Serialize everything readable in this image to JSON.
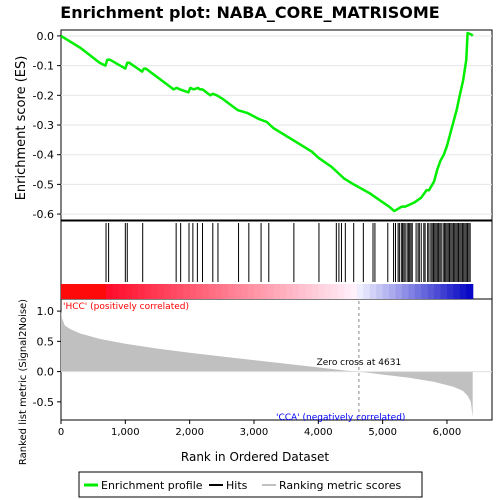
{
  "chart_data": {
    "type": "line",
    "title": "Enrichment plot: NABA_CORE_MATRISOME",
    "xlabel": "Rank in Ordered Dataset",
    "es_panel": {
      "ylabel": "Enrichment score (ES)",
      "ylim": [
        -0.62,
        0.02
      ],
      "yticks": [
        0.0,
        -0.1,
        -0.2,
        -0.3,
        -0.4,
        -0.5,
        -0.6
      ],
      "ytick_labels": [
        "0.0",
        "-0.1",
        "-0.2",
        "-0.3",
        "-0.4",
        "-0.5",
        "-0.6"
      ],
      "color": "#00ee00",
      "series": [
        {
          "name": "Enrichment profile",
          "x": [
            0,
            300,
            600,
            690,
            720,
            760,
            1000,
            1030,
            1060,
            1260,
            1290,
            1320,
            1750,
            1800,
            1850,
            1980,
            2010,
            2060,
            2130,
            2160,
            2200,
            2320,
            2360,
            2420,
            2500,
            2750,
            2900,
            3080,
            3200,
            3300,
            3600,
            3900,
            4000,
            4200,
            4300,
            4400,
            4550,
            4800,
            5000,
            5100,
            5180,
            5220,
            5300,
            5350,
            5400,
            5500,
            5600,
            5680,
            5720,
            5800,
            5850,
            5900,
            5950,
            6000,
            6050,
            6100,
            6150,
            6200,
            6250,
            6300,
            6320,
            6380,
            6400
          ],
          "y": [
            0.0,
            -0.04,
            -0.09,
            -0.1,
            -0.08,
            -0.08,
            -0.11,
            -0.09,
            -0.09,
            -0.12,
            -0.11,
            -0.11,
            -0.18,
            -0.175,
            -0.18,
            -0.19,
            -0.175,
            -0.18,
            -0.175,
            -0.18,
            -0.18,
            -0.2,
            -0.195,
            -0.2,
            -0.21,
            -0.25,
            -0.26,
            -0.28,
            -0.29,
            -0.31,
            -0.35,
            -0.39,
            -0.41,
            -0.44,
            -0.46,
            -0.48,
            -0.5,
            -0.53,
            -0.56,
            -0.575,
            -0.59,
            -0.585,
            -0.575,
            -0.575,
            -0.57,
            -0.56,
            -0.545,
            -0.52,
            -0.52,
            -0.49,
            -0.45,
            -0.42,
            -0.4,
            -0.37,
            -0.33,
            -0.29,
            -0.25,
            -0.2,
            -0.15,
            -0.08,
            0.01,
            0.005,
            0.0
          ]
        }
      ]
    },
    "hits_panel": {
      "hit_ranks": [
        700,
        740,
        1000,
        1030,
        1270,
        1790,
        1860,
        1990,
        2050,
        2120,
        2200,
        2360,
        2440,
        2760,
        2920,
        3110,
        3230,
        3620,
        4010,
        4280,
        4320,
        4360,
        4420,
        4550,
        4700,
        4850,
        4880,
        5080,
        5170,
        5200,
        5240,
        5260,
        5290,
        5310,
        5330,
        5350,
        5380,
        5400,
        5420,
        5440,
        5460,
        5520,
        5550,
        5570,
        5600,
        5640,
        5660,
        5700,
        5720,
        5750,
        5770,
        5790,
        5810,
        5830,
        5850,
        5870,
        5890,
        5910,
        5940,
        5960,
        5980,
        6000,
        6020,
        6040,
        6060,
        6080,
        6100,
        6120,
        6140,
        6160,
        6180,
        6200,
        6220,
        6240,
        6260,
        6280,
        6300,
        6320,
        6340,
        6360
      ]
    },
    "ranked_metric_panel": {
      "ylabel": "Ranked list metric (Signal2Noise)",
      "ylim": [
        -0.8,
        1.2
      ],
      "yticks": [
        1.0,
        0.5,
        0.0,
        -0.5
      ],
      "ytick_labels": [
        "1.0",
        "0.5",
        "0.0",
        "-0.5"
      ],
      "x": [
        0,
        20,
        60,
        150,
        300,
        600,
        1000,
        1500,
        2000,
        2500,
        3000,
        3500,
        4000,
        4400,
        4631,
        5000,
        5400,
        5800,
        6100,
        6250,
        6320,
        6370,
        6400
      ],
      "y": [
        1.0,
        0.87,
        0.76,
        0.7,
        0.63,
        0.54,
        0.46,
        0.38,
        0.31,
        0.25,
        0.19,
        0.13,
        0.07,
        0.02,
        0.0,
        -0.05,
        -0.1,
        -0.17,
        -0.25,
        -0.32,
        -0.4,
        -0.5,
        -0.75
      ],
      "zero_cross_label": "Zero cross at 4631",
      "zero_cross": 4631,
      "positive_label": "'HCC' (positively correlated)",
      "negative_label": "'CCA' (negatively correlated)"
    },
    "x_axis": {
      "xlim": [
        0,
        6700
      ],
      "ticks": [
        0,
        1000,
        2000,
        3000,
        4000,
        5000,
        6000
      ],
      "tick_labels": [
        "0",
        "1,000",
        "2,000",
        "3,000",
        "4,000",
        "5,000",
        "6,000"
      ],
      "n_genes": 6400
    },
    "legend": {
      "placement": "bottom",
      "items": [
        {
          "label": "Enrichment profile",
          "color": "#00ee00"
        },
        {
          "label": "Hits",
          "color": "#000000"
        },
        {
          "label": "Ranking metric scores",
          "color": "#c0c0c0"
        }
      ]
    }
  }
}
